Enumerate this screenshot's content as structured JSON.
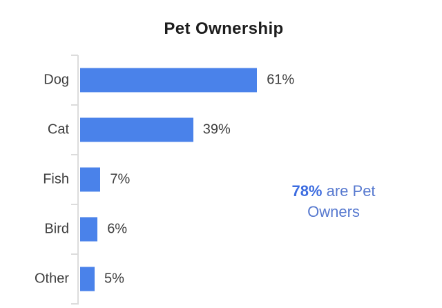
{
  "title": "Pet Ownership",
  "chart_data": {
    "type": "bar",
    "orientation": "horizontal",
    "title": "Pet Ownership",
    "categories": [
      "Dog",
      "Cat",
      "Fish",
      "Bird",
      "Other"
    ],
    "values": [
      61,
      39,
      7,
      6,
      5
    ],
    "value_labels": [
      "61%",
      "39%",
      "7%",
      "6%",
      "5%"
    ],
    "xlim": [
      0,
      100
    ],
    "grid": false,
    "legend": false,
    "bar_color": "#4a82ea",
    "axis_color": "#dcdcdc"
  },
  "annotation": {
    "line1_highlight": "78%",
    "line1_rest": " are Pet",
    "line2": "Owners",
    "highlight_color": "#3c6ce0",
    "text_color": "#5779cf"
  },
  "colors": {
    "bar": "#4a82ea",
    "axis": "#dcdcdc",
    "title_text": "#1d1d1d",
    "label_text": "#3d3d3d"
  }
}
